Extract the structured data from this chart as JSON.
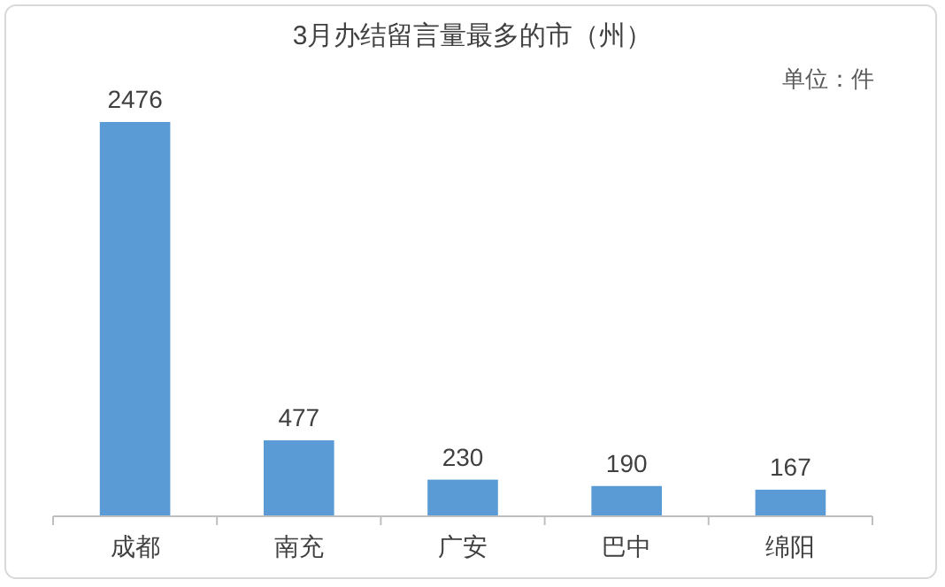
{
  "chart_data": {
    "type": "bar",
    "title": "3月办结留言量最多的市（州）",
    "annotations": [
      "单位：件"
    ],
    "categories": [
      "成都",
      "南充",
      "广安",
      "巴中",
      "绵阳"
    ],
    "values": [
      2476,
      477,
      230,
      190,
      167
    ],
    "color": "#5b9bd5",
    "data_labels": true
  }
}
